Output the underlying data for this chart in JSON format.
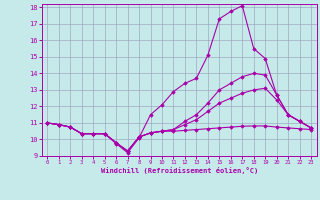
{
  "xlabel": "Windchill (Refroidissement éolien,°C)",
  "xlim": [
    -0.5,
    23.5
  ],
  "ylim": [
    9,
    18.2
  ],
  "yticks": [
    9,
    10,
    11,
    12,
    13,
    14,
    15,
    16,
    17,
    18
  ],
  "xticks": [
    0,
    1,
    2,
    3,
    4,
    5,
    6,
    7,
    8,
    9,
    10,
    11,
    12,
    13,
    14,
    15,
    16,
    17,
    18,
    19,
    20,
    21,
    22,
    23
  ],
  "bg_color": "#c6eaea",
  "line_color": "#aa00aa",
  "grid_color": "#9999bb",
  "lines": [
    {
      "x": [
        0,
        1,
        2,
        3,
        4,
        5,
        6,
        7,
        8,
        9,
        10,
        11,
        12,
        13,
        14,
        15,
        16,
        17,
        18,
        19,
        20,
        21,
        22,
        23
      ],
      "y": [
        11.0,
        10.9,
        10.75,
        10.35,
        10.35,
        10.35,
        9.75,
        9.2,
        10.1,
        11.5,
        12.1,
        12.9,
        13.4,
        13.7,
        15.1,
        17.3,
        17.75,
        18.1,
        15.5,
        14.9,
        12.7,
        11.5,
        11.1,
        10.7
      ]
    },
    {
      "x": [
        0,
        1,
        2,
        3,
        4,
        5,
        6,
        7,
        8,
        9,
        10,
        11,
        12,
        13,
        14,
        15,
        16,
        17,
        18,
        19,
        20,
        21,
        22,
        23
      ],
      "y": [
        11.0,
        10.9,
        10.75,
        10.35,
        10.35,
        10.35,
        9.8,
        9.3,
        10.15,
        10.4,
        10.5,
        10.6,
        11.1,
        11.5,
        12.2,
        13.0,
        13.4,
        13.8,
        14.0,
        13.9,
        12.7,
        11.5,
        11.1,
        10.7
      ]
    },
    {
      "x": [
        0,
        1,
        2,
        3,
        4,
        5,
        6,
        7,
        8,
        9,
        10,
        11,
        12,
        13,
        14,
        15,
        16,
        17,
        18,
        19,
        20,
        21,
        22,
        23
      ],
      "y": [
        11.0,
        10.9,
        10.75,
        10.35,
        10.35,
        10.35,
        9.8,
        9.3,
        10.15,
        10.4,
        10.5,
        10.6,
        10.9,
        11.2,
        11.7,
        12.2,
        12.5,
        12.8,
        13.0,
        13.1,
        12.4,
        11.5,
        11.1,
        10.7
      ]
    },
    {
      "x": [
        0,
        1,
        2,
        3,
        4,
        5,
        6,
        7,
        8,
        9,
        10,
        11,
        12,
        13,
        14,
        15,
        16,
        17,
        18,
        19,
        20,
        21,
        22,
        23
      ],
      "y": [
        11.0,
        10.9,
        10.75,
        10.35,
        10.35,
        10.35,
        9.8,
        9.3,
        10.15,
        10.4,
        10.5,
        10.5,
        10.55,
        10.6,
        10.65,
        10.7,
        10.75,
        10.8,
        10.82,
        10.82,
        10.75,
        10.7,
        10.65,
        10.6
      ]
    }
  ]
}
